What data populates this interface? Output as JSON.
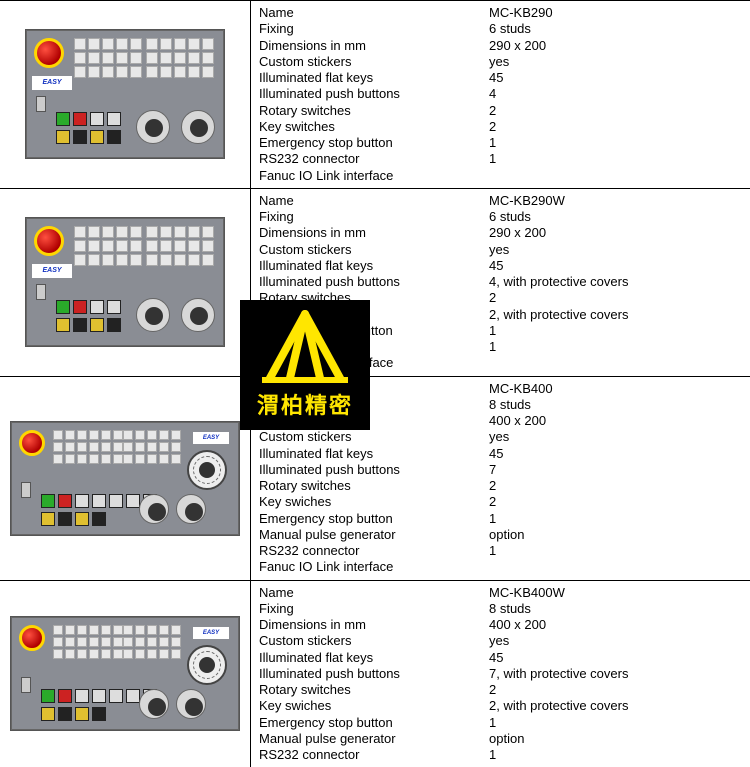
{
  "panel_logo_text": "EASY",
  "center_logo": {
    "text": "渭柏精密",
    "fg": "#ffe600",
    "bg": "#000000"
  },
  "colors": {
    "border": "#000000",
    "panel_bg": "#8a8d94"
  },
  "fields": [
    "Name",
    "Fixing",
    "Dimensions in mm",
    "Custom stickers",
    "Illuminated flat keys",
    "Illuminated push buttons",
    "Rotary switches",
    "Key switches",
    "Key swiches",
    "Emergency stop button",
    "Manual pulse generator",
    "RS232 connector",
    "Fanuc IO Link interface"
  ],
  "products": [
    {
      "panel": "small",
      "specs": [
        {
          "label": "Name",
          "value": "MC-KB290"
        },
        {
          "label": "Fixing",
          "value": "6 studs"
        },
        {
          "label": "Dimensions in mm",
          "value": "290 x 200"
        },
        {
          "label": "Custom stickers",
          "value": "yes"
        },
        {
          "label": "Illuminated flat keys",
          "value": "45"
        },
        {
          "label": "Illuminated push buttons",
          "value": "4"
        },
        {
          "label": "Rotary switches",
          "value": "2"
        },
        {
          "label": "Key switches",
          "value": "2"
        },
        {
          "label": "Emergency stop button",
          "value": "1"
        },
        {
          "label": "RS232 connector",
          "value": "1"
        },
        {
          "label": "Fanuc IO Link interface",
          "value": ""
        }
      ]
    },
    {
      "panel": "small",
      "specs": [
        {
          "label": "Name",
          "value": "MC-KB290W"
        },
        {
          "label": "Fixing",
          "value": "6 studs"
        },
        {
          "label": "Dimensions in mm",
          "value": "290 x 200"
        },
        {
          "label": "Custom stickers",
          "value": "yes"
        },
        {
          "label": "Illuminated flat keys",
          "value": "45"
        },
        {
          "label": "Illuminated push buttons",
          "value": "4, with protective covers"
        },
        {
          "label": "Rotary switches",
          "value": "2"
        },
        {
          "label": "Key swiches",
          "value": "2, with protective covers"
        },
        {
          "label": "Emergency stop button",
          "value": "1"
        },
        {
          "label": "RS232 connector",
          "value": "1"
        },
        {
          "label": "Fanuc IO Link interface",
          "value": ""
        }
      ]
    },
    {
      "panel": "wide",
      "specs": [
        {
          "label": "Name",
          "value": "MC-KB400"
        },
        {
          "label": "Fixing",
          "value": "8 studs"
        },
        {
          "label": "Dimensions in mm",
          "value": "400 x 200"
        },
        {
          "label": "Custom stickers",
          "value": "yes"
        },
        {
          "label": "Illuminated flat keys",
          "value": "45"
        },
        {
          "label": "Illuminated push buttons",
          "value": "7"
        },
        {
          "label": "Rotary switches",
          "value": "2"
        },
        {
          "label": "Key swiches",
          "value": "2"
        },
        {
          "label": "Emergency stop button",
          "value": "1"
        },
        {
          "label": "Manual pulse generator",
          "value": "option"
        },
        {
          "label": "RS232 connector",
          "value": "1"
        },
        {
          "label": "Fanuc IO Link interface",
          "value": ""
        }
      ]
    },
    {
      "panel": "wide",
      "specs": [
        {
          "label": "Name",
          "value": "MC-KB400W"
        },
        {
          "label": "Fixing",
          "value": "8 studs"
        },
        {
          "label": "Dimensions in mm",
          "value": "400 x 200"
        },
        {
          "label": "Custom stickers",
          "value": "yes"
        },
        {
          "label": "Illuminated flat keys",
          "value": "45"
        },
        {
          "label": "Illuminated push buttons",
          "value": "7, with protective covers"
        },
        {
          "label": "Rotary switches",
          "value": "2"
        },
        {
          "label": "Key swiches",
          "value": "2, with protective covers"
        },
        {
          "label": "Emergency stop button",
          "value": "1"
        },
        {
          "label": "Manual pulse generator",
          "value": "option"
        },
        {
          "label": "RS232 connector",
          "value": "1"
        }
      ]
    }
  ]
}
